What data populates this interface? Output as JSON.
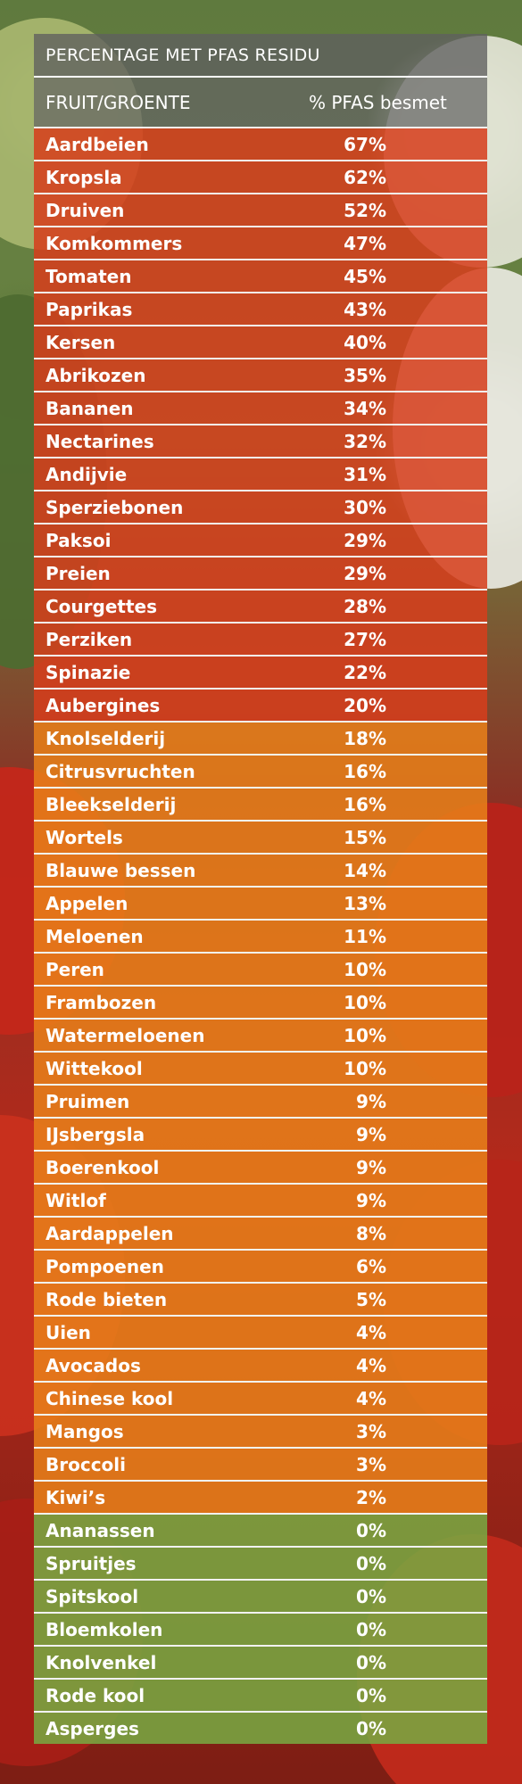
{
  "colors": {
    "high": "#d63e1c",
    "medium": "#e8801a",
    "none": "#78aa42",
    "header": "#646464",
    "text": "#ffffff"
  },
  "table": {
    "title": "PERCENTAGE MET PFAS RESIDU",
    "col_product": "FRUIT/GROENTE",
    "col_value": "% PFAS besmet"
  },
  "chart_data": {
    "type": "table",
    "title": "PERCENTAGE MET PFAS RESIDU",
    "columns": [
      "FRUIT/GROENTE",
      "% PFAS besmet"
    ],
    "rows": [
      {
        "name": "Aardbeien",
        "label": "67%",
        "value": 67,
        "tier": "red"
      },
      {
        "name": "Kropsla",
        "label": "62%",
        "value": 62,
        "tier": "red"
      },
      {
        "name": "Druiven",
        "label": "52%",
        "value": 52,
        "tier": "red"
      },
      {
        "name": "Komkommers",
        "label": "47%",
        "value": 47,
        "tier": "red"
      },
      {
        "name": "Tomaten",
        "label": "45%",
        "value": 45,
        "tier": "red"
      },
      {
        "name": "Paprikas",
        "label": "43%",
        "value": 43,
        "tier": "red"
      },
      {
        "name": "Kersen",
        "label": "40%",
        "value": 40,
        "tier": "red"
      },
      {
        "name": "Abrikozen",
        "label": "35%",
        "value": 35,
        "tier": "red"
      },
      {
        "name": "Bananen",
        "label": "34%",
        "value": 34,
        "tier": "red"
      },
      {
        "name": "Nectarines",
        "label": "32%",
        "value": 32,
        "tier": "red"
      },
      {
        "name": "Andijvie",
        "label": "31%",
        "value": 31,
        "tier": "red"
      },
      {
        "name": "Sperziebonen",
        "label": "30%",
        "value": 30,
        "tier": "red"
      },
      {
        "name": "Paksoi",
        "label": "29%",
        "value": 29,
        "tier": "red"
      },
      {
        "name": "Preien",
        "label": "29%",
        "value": 29,
        "tier": "red"
      },
      {
        "name": "Courgettes",
        "label": "28%",
        "value": 28,
        "tier": "red"
      },
      {
        "name": "Perziken",
        "label": "27%",
        "value": 27,
        "tier": "red"
      },
      {
        "name": "Spinazie",
        "label": "22%",
        "value": 22,
        "tier": "red"
      },
      {
        "name": "Aubergines",
        "label": "20%",
        "value": 20,
        "tier": "red"
      },
      {
        "name": "Knolselderij",
        "label": "18%",
        "value": 18,
        "tier": "orange"
      },
      {
        "name": "Citrusvruchten",
        "label": "16%",
        "value": 16,
        "tier": "orange"
      },
      {
        "name": "Bleekselderij",
        "label": "16%",
        "value": 16,
        "tier": "orange"
      },
      {
        "name": "Wortels",
        "label": "15%",
        "value": 15,
        "tier": "orange"
      },
      {
        "name": "Blauwe bessen",
        "label": "14%",
        "value": 14,
        "tier": "orange"
      },
      {
        "name": "Appelen",
        "label": "13%",
        "value": 13,
        "tier": "orange"
      },
      {
        "name": "Meloenen",
        "label": "11%",
        "value": 11,
        "tier": "orange"
      },
      {
        "name": "Peren",
        "label": "10%",
        "value": 10,
        "tier": "orange"
      },
      {
        "name": "Frambozen",
        "label": "10%",
        "value": 10,
        "tier": "orange"
      },
      {
        "name": "Watermeloenen",
        "label": "10%",
        "value": 10,
        "tier": "orange"
      },
      {
        "name": "Wittekool",
        "label": "10%",
        "value": 10,
        "tier": "orange"
      },
      {
        "name": "Pruimen",
        "label": "9%",
        "value": 9,
        "tier": "orange"
      },
      {
        "name": "IJsbergsla",
        "label": "9%",
        "value": 9,
        "tier": "orange"
      },
      {
        "name": "Boerenkool",
        "label": "9%",
        "value": 9,
        "tier": "orange"
      },
      {
        "name": "Witlof",
        "label": "9%",
        "value": 9,
        "tier": "orange"
      },
      {
        "name": "Aardappelen",
        "label": "8%",
        "value": 8,
        "tier": "orange"
      },
      {
        "name": "Pompoenen",
        "label": "6%",
        "value": 6,
        "tier": "orange"
      },
      {
        "name": "Rode bieten",
        "label": "5%",
        "value": 5,
        "tier": "orange"
      },
      {
        "name": "Uien",
        "label": "4%",
        "value": 4,
        "tier": "orange"
      },
      {
        "name": "Avocados",
        "label": "4%",
        "value": 4,
        "tier": "orange"
      },
      {
        "name": "Chinese kool",
        "label": "4%",
        "value": 4,
        "tier": "orange"
      },
      {
        "name": "Mangos",
        "label": "3%",
        "value": 3,
        "tier": "orange"
      },
      {
        "name": "Broccoli",
        "label": "3%",
        "value": 3,
        "tier": "orange"
      },
      {
        "name": "Kiwi’s",
        "label": "2%",
        "value": 2,
        "tier": "orange"
      },
      {
        "name": "Ananassen",
        "label": "0%",
        "value": 0,
        "tier": "green"
      },
      {
        "name": "Spruitjes",
        "label": "0%",
        "value": 0,
        "tier": "green"
      },
      {
        "name": "Spitskool",
        "label": "0%",
        "value": 0,
        "tier": "green"
      },
      {
        "name": "Bloemkolen",
        "label": "0%",
        "value": 0,
        "tier": "green"
      },
      {
        "name": "Knolvenkel",
        "label": "0%",
        "value": 0,
        "tier": "green"
      },
      {
        "name": "Rode kool",
        "label": "0%",
        "value": 0,
        "tier": "green"
      },
      {
        "name": "Asperges",
        "label": "0%",
        "value": 0,
        "tier": "green"
      }
    ]
  }
}
